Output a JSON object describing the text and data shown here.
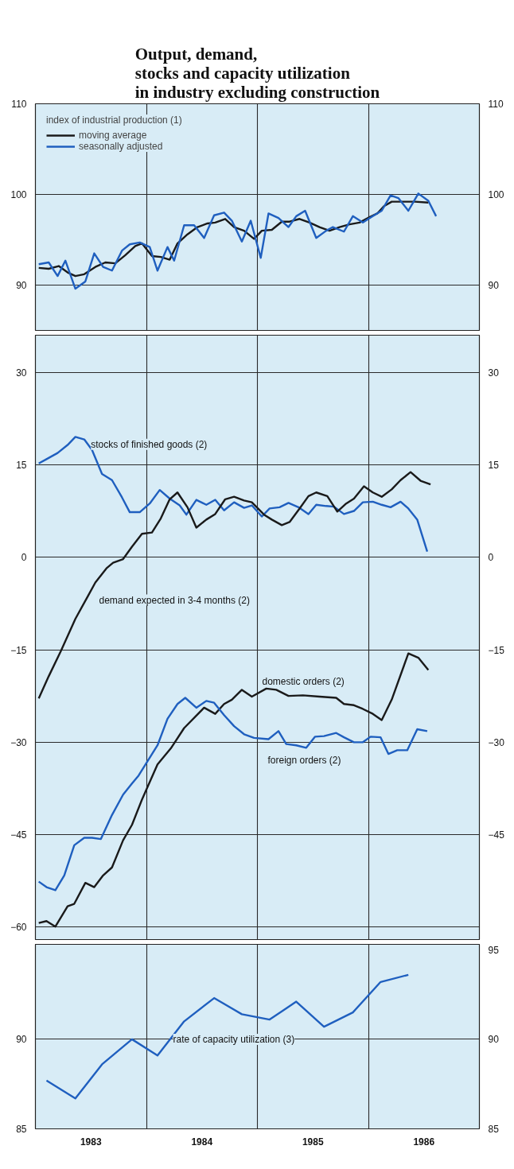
{
  "chart_data": [
    {
      "type": "line",
      "title": "Output, demand,\nstocks and capacity utilization\nin industry excluding construction",
      "legend_title": "index of industrial production (1)",
      "legend": "top left",
      "grid": true,
      "tick_labels": "y",
      "xlim": [
        1983,
        1987
      ],
      "xticks": [
        {
          "value": 1984,
          "label": null
        },
        {
          "value": 1985,
          "label": null
        },
        {
          "value": 1986,
          "label": null
        }
      ],
      "ylim": [
        85,
        110
      ],
      "yticks": [
        90,
        100,
        110
      ],
      "y2lim": [
        85,
        110
      ],
      "y2ticks": [
        90,
        100,
        110
      ],
      "series": [
        {
          "name": "moving average",
          "color": "#1a1a1a",
          "x": [
            1983.03,
            1983.12,
            1983.21,
            1983.29,
            1983.36,
            1983.44,
            1983.54,
            1983.63,
            1983.72,
            1983.81,
            1983.9,
            1983.96,
            1984.05,
            1984.13,
            1984.21,
            1984.28,
            1984.37,
            1984.46,
            1984.55,
            1984.62,
            1984.71,
            1984.79,
            1984.88,
            1984.97,
            1985.04,
            1985.13,
            1985.22,
            1985.29,
            1985.38,
            1985.47,
            1985.56,
            1985.65,
            1985.74,
            1985.83,
            1985.92,
            1986.01,
            1986.08,
            1986.14,
            1986.21,
            1986.3,
            1986.42,
            1986.54
          ],
          "values": [
            91.9,
            91.8,
            92.1,
            91.4,
            91.0,
            91.2,
            92.0,
            92.5,
            92.4,
            93.3,
            94.3,
            94.6,
            93.2,
            93.1,
            92.8,
            94.6,
            95.6,
            96.4,
            96.8,
            96.9,
            97.3,
            96.4,
            96.0,
            95.1,
            96.0,
            96.1,
            97.0,
            97.0,
            97.3,
            96.9,
            96.4,
            96.0,
            96.4,
            96.7,
            96.9,
            97.5,
            97.9,
            98.7,
            99.2,
            99.2,
            99.2,
            99.1
          ]
        },
        {
          "name": "seasonally adjusted",
          "color": "#1f5fbf",
          "x": [
            1983.03,
            1983.12,
            1983.2,
            1983.27,
            1983.36,
            1983.45,
            1983.53,
            1983.61,
            1983.69,
            1983.78,
            1983.85,
            1983.94,
            1984.03,
            1984.1,
            1984.19,
            1984.25,
            1984.34,
            1984.43,
            1984.52,
            1984.61,
            1984.7,
            1984.77,
            1984.86,
            1984.94,
            1985.03,
            1985.1,
            1985.19,
            1985.28,
            1985.35,
            1985.43,
            1985.53,
            1985.62,
            1985.68,
            1985.78,
            1985.86,
            1985.95,
            1986.04,
            1986.12,
            1986.2,
            1986.27,
            1986.36,
            1986.45,
            1986.54,
            1986.61
          ],
          "values": [
            92.3,
            92.5,
            91.0,
            92.7,
            89.6,
            90.4,
            93.5,
            92.0,
            91.6,
            93.8,
            94.5,
            94.7,
            94.2,
            91.6,
            94.2,
            92.7,
            96.6,
            96.6,
            95.2,
            97.7,
            98.0,
            97.1,
            94.8,
            97.1,
            93.0,
            97.9,
            97.4,
            96.4,
            97.6,
            98.2,
            95.2,
            96.0,
            96.4,
            95.9,
            97.6,
            96.9,
            97.6,
            98.2,
            99.9,
            99.6,
            98.2,
            100.1,
            99.3,
            97.6
          ]
        }
      ]
    },
    {
      "type": "line",
      "grid": true,
      "tick_labels": "y",
      "xlim": [
        1983,
        1987
      ],
      "xticks": [
        {
          "value": 1984,
          "label": null
        },
        {
          "value": 1985,
          "label": null
        },
        {
          "value": 1986,
          "label": null
        }
      ],
      "ylim": [
        -62,
        36
      ],
      "yticks": [
        30,
        15,
        0,
        -15,
        -30,
        -45,
        -60
      ],
      "y2lim": [
        -62,
        36
      ],
      "y2ticks": [
        30,
        15,
        0,
        -15,
        -30,
        -45
      ],
      "annotations": [
        {
          "text": "stocks of finished goods (2)",
          "x": 1983.5,
          "y": 18.3
        },
        "demand expected in 3-4 months (2)",
        "domestic orders (2)",
        "foreign orders (2)"
      ],
      "series": [
        {
          "color": "#1f5fbf",
          "x": [
            1983.03,
            1983.1,
            1983.2,
            1983.29,
            1983.36,
            1983.44,
            1983.51,
            1983.6,
            1983.69,
            1983.78,
            1983.85,
            1983.94,
            1984.03,
            1984.12,
            1984.21,
            1984.3,
            1984.36,
            1984.45,
            1984.54,
            1984.62,
            1984.7,
            1984.79,
            1984.88,
            1984.95,
            1985.04,
            1985.11,
            1985.2,
            1985.28,
            1985.37,
            1985.46,
            1985.53,
            1985.62,
            1985.69,
            1985.78,
            1985.87,
            1985.95,
            1986.04,
            1986.12,
            1986.2,
            1986.29,
            1986.36,
            1986.44,
            1986.53
          ],
          "values": [
            15.2,
            15.9,
            16.9,
            18.2,
            19.5,
            19.1,
            17.4,
            13.5,
            12.5,
            9.7,
            7.3,
            7.3,
            8.7,
            10.9,
            9.5,
            8.4,
            6.9,
            9.3,
            8.5,
            9.3,
            7.6,
            8.9,
            8.0,
            8.4,
            6.6,
            7.9,
            8.1,
            8.8,
            8.1,
            7.0,
            8.5,
            8.3,
            8.2,
            7.0,
            7.5,
            8.9,
            9.0,
            8.5,
            8.1,
            9.0,
            7.9,
            6.1,
            0.9
          ]
        },
        {
          "color": "#1a1a1a",
          "x": [
            1983.03,
            1983.12,
            1983.23,
            1983.36,
            1983.47,
            1983.54,
            1983.64,
            1983.7,
            1983.79,
            1983.87,
            1983.96,
            1984.05,
            1984.13,
            1984.21,
            1984.28,
            1984.37,
            1984.45,
            1984.54,
            1984.62,
            1984.71,
            1984.79,
            1984.88,
            1984.95,
            1985.06,
            1985.13,
            1985.22,
            1985.29,
            1985.38,
            1985.46,
            1985.53,
            1985.63,
            1985.72,
            1985.8,
            1985.87,
            1985.96,
            1986.04,
            1986.12,
            1986.21,
            1986.29,
            1986.38,
            1986.47,
            1986.56
          ],
          "values": [
            -22.9,
            -19.3,
            -15.2,
            -10.0,
            -6.4,
            -4.1,
            -1.8,
            -0.9,
            -0.3,
            1.7,
            3.8,
            4.0,
            6.3,
            9.4,
            10.5,
            8.1,
            4.8,
            6.1,
            7.0,
            9.4,
            9.8,
            9.2,
            8.9,
            6.9,
            6.1,
            5.2,
            5.7,
            7.9,
            9.9,
            10.5,
            9.9,
            7.4,
            8.7,
            9.5,
            11.5,
            10.5,
            9.8,
            11.0,
            12.5,
            13.8,
            12.4,
            11.8
          ]
        },
        {
          "color": "#1a1a1a",
          "x": [
            1983.03,
            1983.1,
            1983.18,
            1983.29,
            1983.35,
            1983.45,
            1983.53,
            1983.61,
            1983.69,
            1983.79,
            1983.87,
            1983.96,
            1984.1,
            1984.22,
            1984.34,
            1984.52,
            1984.62,
            1984.7,
            1984.77,
            1984.86,
            1984.95,
            1985.08,
            1985.17,
            1985.28,
            1985.41,
            1985.56,
            1985.71,
            1985.78,
            1985.87,
            1985.95,
            1986.04,
            1986.12,
            1986.21,
            1986.36,
            1986.45,
            1986.54
          ],
          "values": [
            -59.3,
            -59.0,
            -59.9,
            -56.6,
            -56.2,
            -52.8,
            -53.5,
            -51.6,
            -50.3,
            -45.9,
            -43.4,
            -39.3,
            -33.6,
            -31.0,
            -27.7,
            -24.4,
            -25.4,
            -23.8,
            -23.1,
            -21.5,
            -22.6,
            -21.3,
            -21.5,
            -22.5,
            -22.4,
            -22.6,
            -22.8,
            -23.8,
            -24.0,
            -24.6,
            -25.4,
            -26.4,
            -23.1,
            -15.6,
            -16.3,
            -18.3
          ]
        },
        {
          "color": "#1f5fbf",
          "x": [
            1983.03,
            1983.1,
            1983.18,
            1983.26,
            1983.35,
            1983.44,
            1983.51,
            1983.59,
            1983.69,
            1983.79,
            1983.87,
            1983.93,
            1984.1,
            1984.19,
            1984.28,
            1984.35,
            1984.45,
            1984.54,
            1984.61,
            1984.7,
            1984.79,
            1984.88,
            1984.97,
            1985.1,
            1985.19,
            1985.26,
            1985.35,
            1985.44,
            1985.52,
            1985.6,
            1985.71,
            1985.78,
            1985.87,
            1985.95,
            1986.02,
            1986.11,
            1986.18,
            1986.26,
            1986.35,
            1986.44,
            1986.53
          ],
          "values": [
            -52.6,
            -53.5,
            -54.0,
            -51.6,
            -46.7,
            -45.5,
            -45.5,
            -45.7,
            -41.8,
            -38.5,
            -36.7,
            -35.4,
            -30.5,
            -26.2,
            -23.8,
            -22.8,
            -24.4,
            -23.3,
            -23.6,
            -25.6,
            -27.4,
            -28.7,
            -29.3,
            -29.5,
            -28.2,
            -30.3,
            -30.5,
            -30.9,
            -29.1,
            -29.0,
            -28.5,
            -29.2,
            -30.0,
            -30.0,
            -29.1,
            -29.2,
            -31.9,
            -31.3,
            -31.3,
            -27.9,
            -28.2
          ]
        }
      ]
    },
    {
      "type": "line",
      "grid": true,
      "xlim": [
        1983,
        1987
      ],
      "xticks": [
        {
          "value": 1983.5,
          "label": "1983"
        },
        {
          "value": 1984,
          "label": null
        },
        {
          "value": 1984.5,
          "label": "1984"
        },
        {
          "value": 1985,
          "label": null
        },
        {
          "value": 1985.5,
          "label": "1985"
        },
        {
          "value": 1986,
          "label": null
        },
        {
          "value": 1986.5,
          "label": "1986"
        }
      ],
      "ylim": [
        85,
        95.3
      ],
      "yticks": [
        85,
        90
      ],
      "y2lim": [
        85,
        95.3
      ],
      "y2ticks": [
        85,
        90,
        95
      ],
      "annotations": [
        {
          "text": "rate of capacity utilization (3)",
          "x": 1984.24,
          "y": 90.0
        }
      ],
      "series": [
        {
          "color": "#1f5fbf",
          "x": [
            1983.1,
            1983.36,
            1983.6,
            1983.87,
            1984.1,
            1984.34,
            1984.61,
            1984.86,
            1985.11,
            1985.35,
            1985.6,
            1985.86,
            1986.11,
            1986.36
          ],
          "values": [
            87.7,
            86.7,
            88.6,
            90.0,
            89.1,
            91.0,
            92.3,
            91.4,
            91.1,
            92.1,
            90.7,
            91.5,
            93.2,
            93.6
          ]
        }
      ]
    }
  ]
}
